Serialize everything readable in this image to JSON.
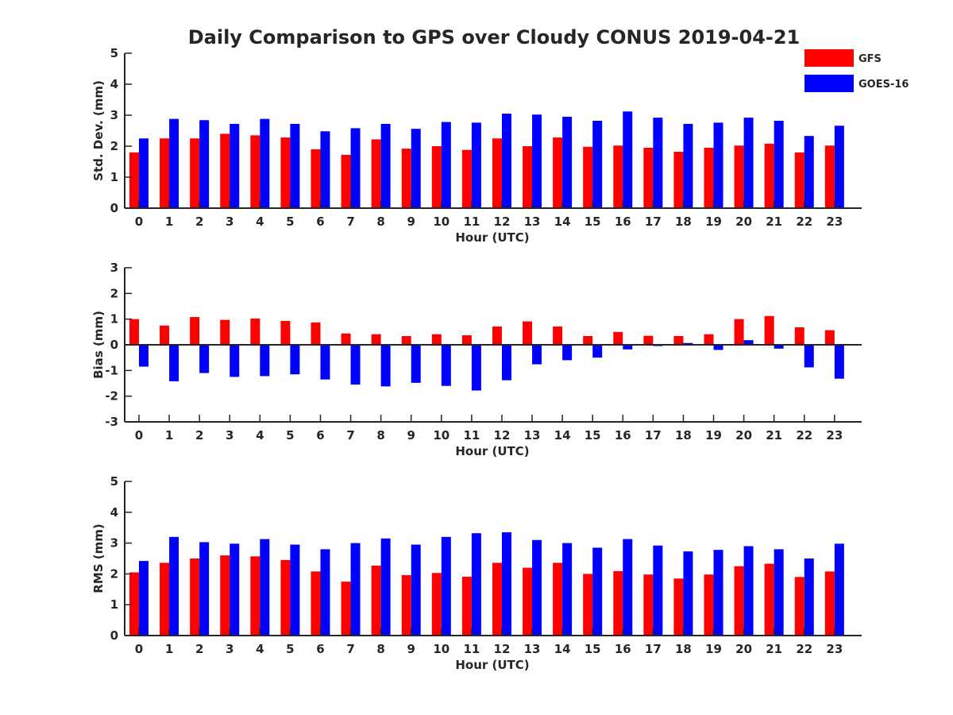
{
  "title": "Daily Comparison to GPS over Cloudy CONUS 2019-04-21",
  "colors": {
    "GFS": "#ff0000",
    "GOES-16": "#0000ff"
  },
  "legend": {
    "placement": "top-right",
    "entries": [
      "GFS",
      "GOES-16"
    ]
  },
  "chart_data": [
    {
      "type": "bar",
      "title": "Daily Comparison to GPS over Cloudy CONUS 2019-04-21",
      "xlabel": "Hour (UTC)",
      "ylabel": "Std. Dev. (mm)",
      "ylim": [
        0,
        5
      ],
      "yticks": [
        0,
        1,
        2,
        3,
        4,
        5
      ],
      "grid": false,
      "categories": [
        "0",
        "1",
        "2",
        "3",
        "4",
        "5",
        "6",
        "7",
        "8",
        "9",
        "10",
        "11",
        "12",
        "13",
        "14",
        "15",
        "16",
        "17",
        "18",
        "19",
        "20",
        "21",
        "22",
        "23"
      ],
      "series": [
        {
          "name": "GFS",
          "values": [
            1.8,
            2.25,
            2.25,
            2.4,
            2.35,
            2.28,
            1.9,
            1.72,
            2.22,
            1.92,
            2.0,
            1.88,
            2.25,
            2.0,
            2.28,
            1.98,
            2.02,
            1.95,
            1.82,
            1.95,
            2.02,
            2.08,
            1.8,
            2.02
          ]
        },
        {
          "name": "GOES-16",
          "values": [
            2.25,
            2.88,
            2.84,
            2.72,
            2.88,
            2.72,
            2.48,
            2.58,
            2.72,
            2.56,
            2.78,
            2.76,
            3.05,
            3.02,
            2.95,
            2.82,
            3.12,
            2.92,
            2.72,
            2.76,
            2.92,
            2.82,
            2.33,
            2.66
          ]
        }
      ]
    },
    {
      "type": "bar",
      "title": "",
      "xlabel": "Hour (UTC)",
      "ylabel": "Bias (mm)",
      "ylim": [
        -3,
        3
      ],
      "yticks": [
        -3,
        -2,
        -1,
        0,
        1,
        2,
        3
      ],
      "grid": false,
      "categories": [
        "0",
        "1",
        "2",
        "3",
        "4",
        "5",
        "6",
        "7",
        "8",
        "9",
        "10",
        "11",
        "12",
        "13",
        "14",
        "15",
        "16",
        "17",
        "18",
        "19",
        "20",
        "21",
        "22",
        "23"
      ],
      "series": [
        {
          "name": "GFS",
          "values": [
            1.0,
            0.75,
            1.08,
            0.97,
            1.02,
            0.93,
            0.87,
            0.44,
            0.41,
            0.34,
            0.41,
            0.37,
            0.71,
            0.91,
            0.71,
            0.34,
            0.5,
            0.35,
            0.34,
            0.41,
            1.0,
            1.12,
            0.68,
            0.57
          ]
        },
        {
          "name": "GOES-16",
          "values": [
            -0.85,
            -1.42,
            -1.1,
            -1.25,
            -1.22,
            -1.15,
            -1.35,
            -1.55,
            -1.62,
            -1.48,
            -1.6,
            -1.78,
            -1.38,
            -0.76,
            -0.6,
            -0.5,
            -0.18,
            -0.05,
            0.07,
            -0.2,
            0.18,
            -0.15,
            -0.88,
            -1.32
          ]
        }
      ]
    },
    {
      "type": "bar",
      "title": "",
      "xlabel": "Hour (UTC)",
      "ylabel": "RMS (mm)",
      "ylim": [
        0,
        5
      ],
      "yticks": [
        0,
        1,
        2,
        3,
        4,
        5
      ],
      "grid": false,
      "categories": [
        "0",
        "1",
        "2",
        "3",
        "4",
        "5",
        "6",
        "7",
        "8",
        "9",
        "10",
        "11",
        "12",
        "13",
        "14",
        "15",
        "16",
        "17",
        "18",
        "19",
        "20",
        "21",
        "22",
        "23"
      ],
      "series": [
        {
          "name": "GFS",
          "values": [
            2.05,
            2.36,
            2.5,
            2.6,
            2.57,
            2.45,
            2.08,
            1.75,
            2.27,
            1.96,
            2.03,
            1.91,
            2.36,
            2.2,
            2.36,
            2.0,
            2.09,
            1.98,
            1.85,
            1.98,
            2.25,
            2.33,
            1.9,
            2.08
          ]
        },
        {
          "name": "GOES-16",
          "values": [
            2.42,
            3.2,
            3.03,
            2.98,
            3.13,
            2.95,
            2.8,
            3.0,
            3.15,
            2.95,
            3.2,
            3.32,
            3.35,
            3.1,
            3.0,
            2.85,
            3.13,
            2.92,
            2.73,
            2.78,
            2.9,
            2.8,
            2.5,
            2.98
          ]
        }
      ]
    }
  ]
}
